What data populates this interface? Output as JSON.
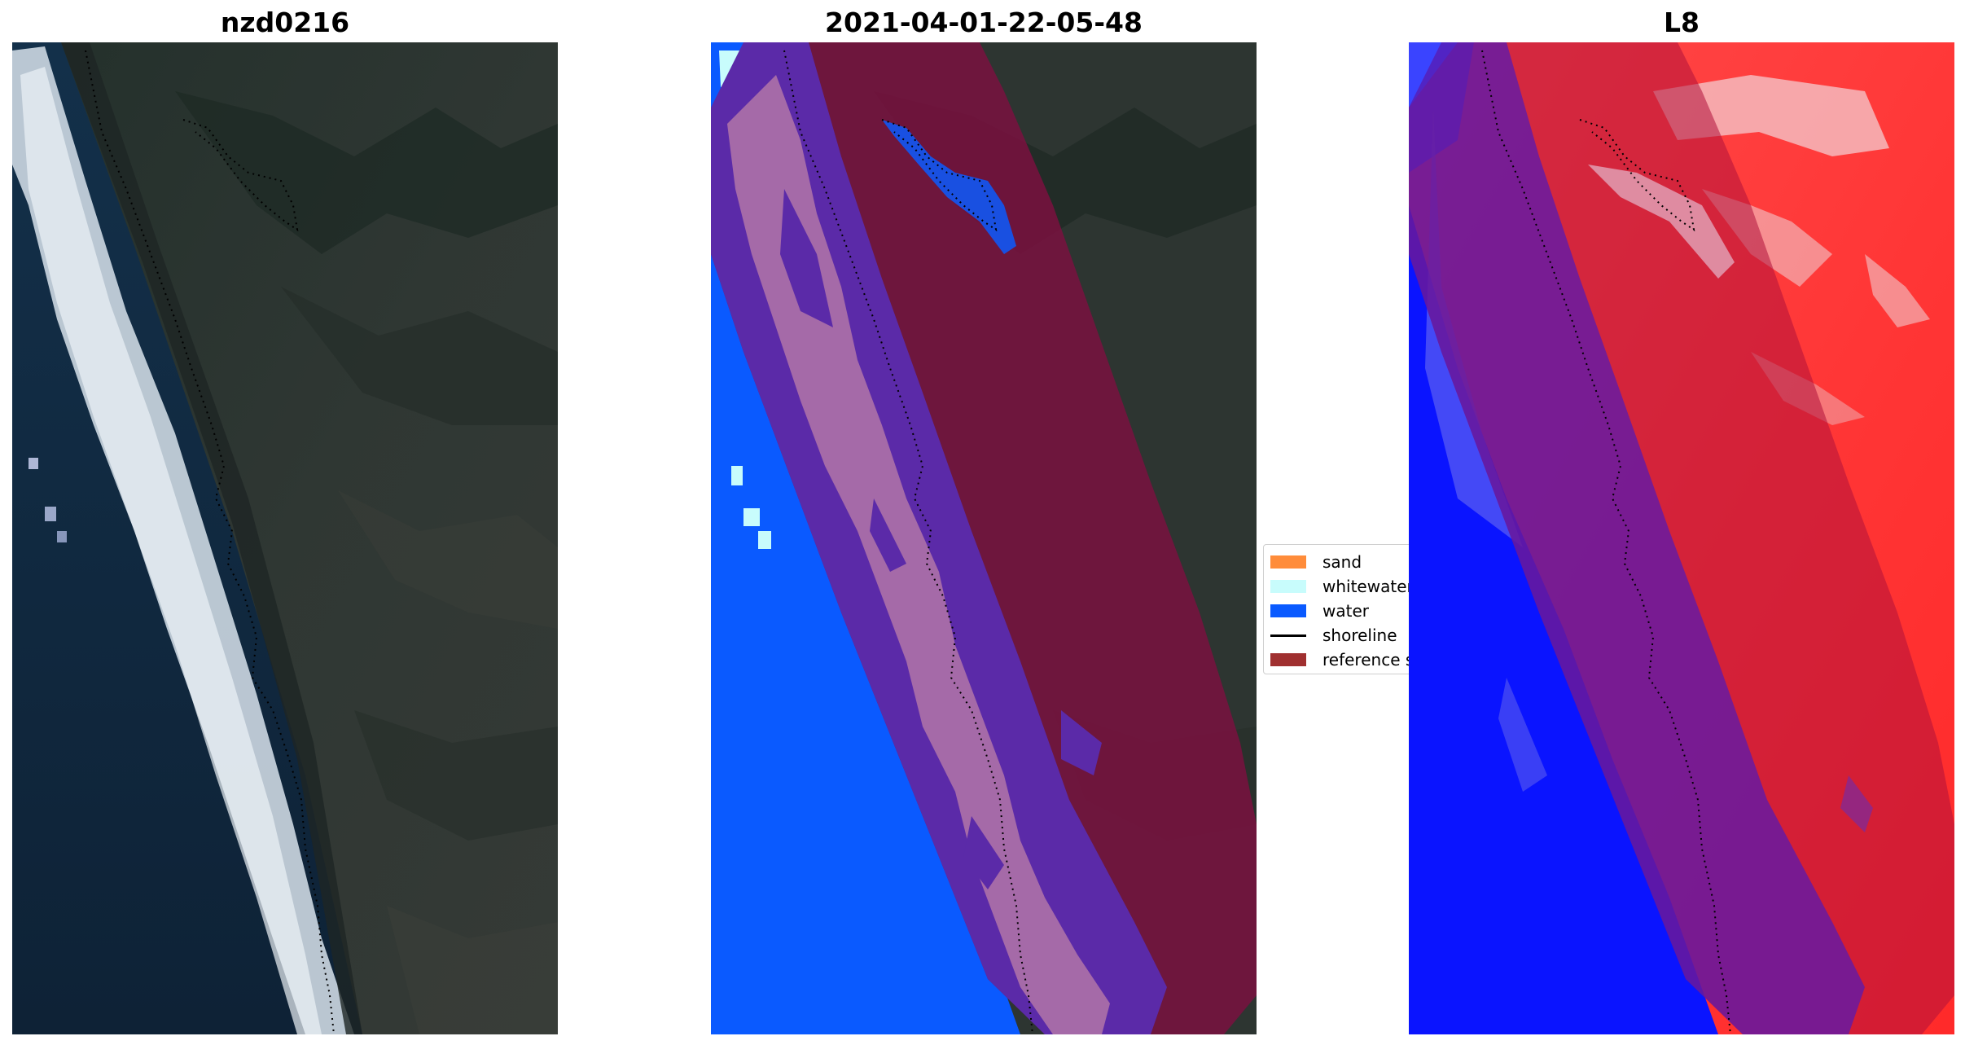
{
  "panels": [
    {
      "title": "nzd0216"
    },
    {
      "title": "2021-04-01-22-05-48"
    },
    {
      "title": "L8"
    }
  ],
  "legend": {
    "items": [
      {
        "label": "sand",
        "color": "#ff8c3a",
        "kind": "patch"
      },
      {
        "label": "whitewater",
        "color": "#c8fcfc",
        "kind": "patch"
      },
      {
        "label": "water",
        "color": "#0a5aff",
        "kind": "patch"
      },
      {
        "label": "shoreline",
        "color": "#000000",
        "kind": "line"
      },
      {
        "label": "reference shoreline buffer",
        "color": "#a03030",
        "kind": "patch"
      }
    ]
  },
  "colors": {
    "ocean_dark": "#112a3f",
    "land_dark": "#2c3530",
    "surf_white": "#dde6ee",
    "water_class": "#0a5aff",
    "buffer_overlay": "#7a1040",
    "buffer_water_overlay": "#5b2aa8",
    "sand_overlay_in_buffer": "#a56aa8",
    "index_low": "#0a14ff",
    "index_high": "#ff2020"
  }
}
